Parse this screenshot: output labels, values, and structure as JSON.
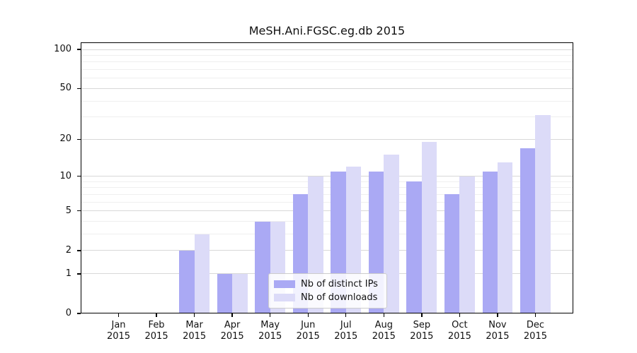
{
  "title": "MeSH.Ani.FGSC.eg.db 2015",
  "chart_data": {
    "type": "bar",
    "title": "MeSH.Ani.FGSC.eg.db 2015",
    "categories": [
      "Jan",
      "Feb",
      "Mar",
      "Apr",
      "May",
      "Jun",
      "Jul",
      "Aug",
      "Sep",
      "Oct",
      "Nov",
      "Dec"
    ],
    "year": "2015",
    "series": [
      {
        "name": "Nb of distinct IPs",
        "color": "#aaa9f4",
        "values": [
          0,
          0,
          2,
          1,
          4,
          7,
          11,
          11,
          9,
          7,
          11,
          17
        ]
      },
      {
        "name": "Nb of downloads",
        "color": "#dcdbf8",
        "values": [
          0,
          0,
          3,
          1,
          4,
          10,
          12,
          15,
          19,
          10,
          13,
          31
        ]
      }
    ],
    "y_scale": "log1p",
    "y_major_ticks": [
      0,
      1,
      2,
      5,
      10,
      20,
      50,
      100
    ],
    "y_minor_ticks": [
      3,
      4,
      6,
      7,
      8,
      9,
      30,
      40,
      60,
      70,
      80,
      90
    ],
    "ylim": [
      0,
      113
    ],
    "grid": "horizontal-major-and-minor",
    "legend_position": "inside-bottom-center",
    "bar_group": "paired-side-by-side"
  },
  "legend": {
    "items": [
      {
        "label": "Nb of distinct IPs"
      },
      {
        "label": "Nb of downloads"
      }
    ]
  },
  "colors": {
    "distinct_ips": "#aaa9f4",
    "downloads": "#dcdbf8",
    "grid_major": "#d8d8d8",
    "grid_minor": "#efefef",
    "axis": "#000000",
    "background": "#ffffff"
  }
}
